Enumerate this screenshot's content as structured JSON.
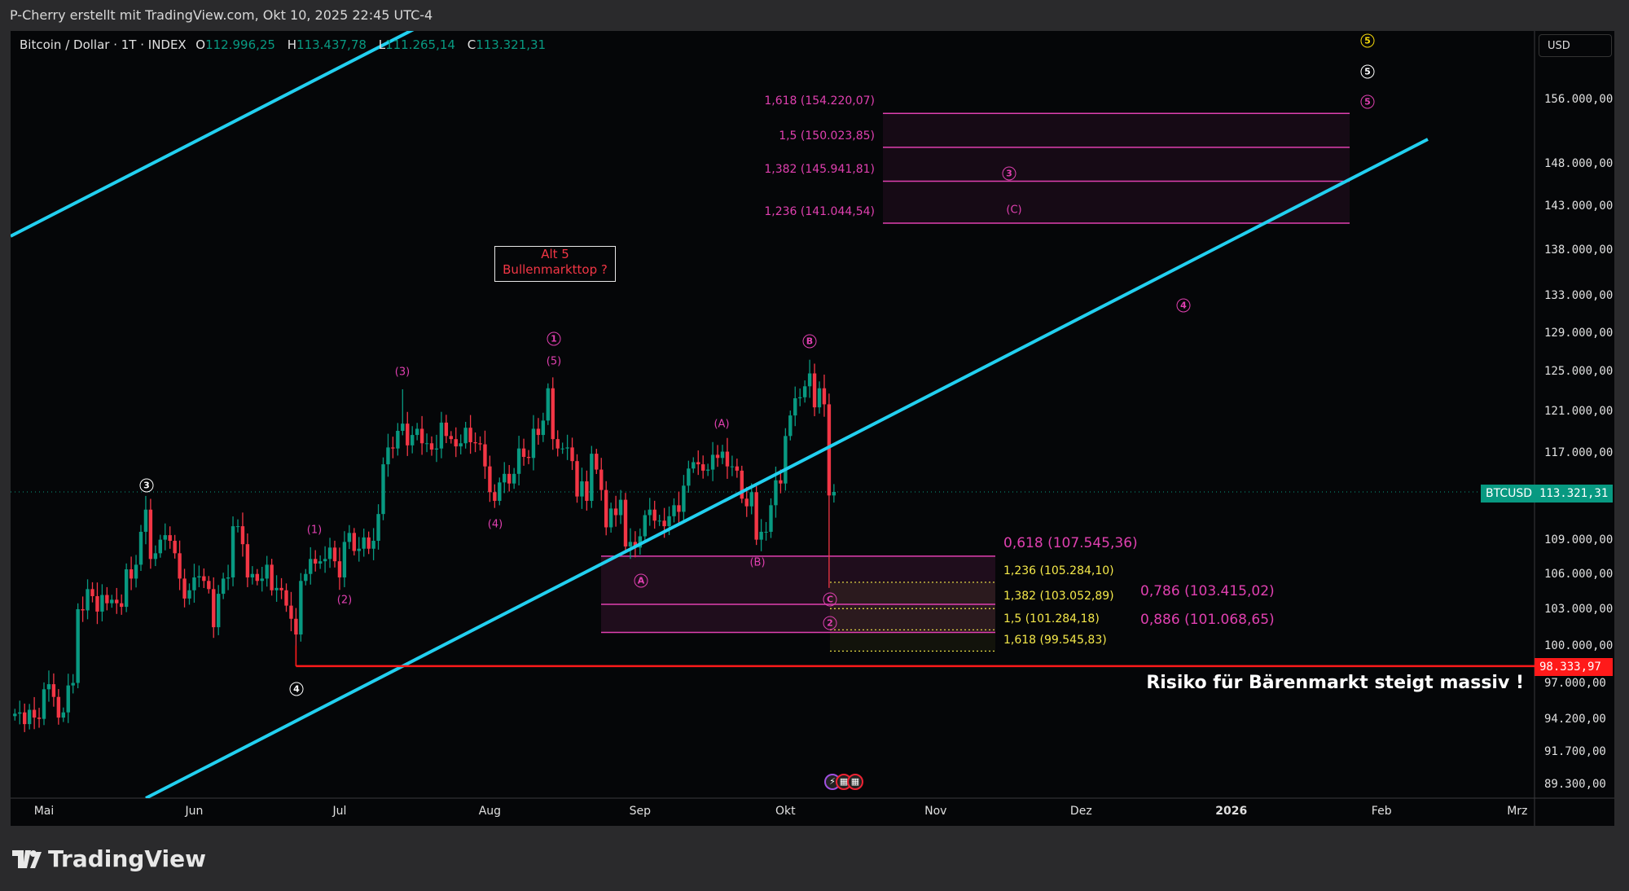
{
  "header": {
    "attribution": "P-Cherry erstellt mit TradingView.com, Okt 10, 2025 22:45 UTC-4"
  },
  "legend": {
    "symbol": "Bitcoin / Dollar · 1T · INDEX",
    "o_label": "O",
    "open": "112.996,25",
    "h_label": "H",
    "high": "113.437,78",
    "l_label": "L",
    "low": "111.265,14",
    "c_label": "C",
    "close": "113.321,31"
  },
  "colors": {
    "up": "#089981",
    "down": "#f23645",
    "trendline": "#22d0f0",
    "fib": "#e040b0",
    "fib_alt": "#f5e94a",
    "support": "#ff1a1a",
    "background": "#050608"
  },
  "price_axis": {
    "currency": "USD",
    "scale": "log",
    "labels": [
      "156.000,00",
      "148.000,00",
      "143.000,00",
      "138.000,00",
      "133.000,00",
      "129.000,00",
      "125.000,00",
      "121.000,00",
      "117.000,00",
      "109.000,00",
      "106.000,00",
      "103.000,00",
      "100.000,00",
      "97.000,00",
      "94.200,00",
      "91.700,00",
      "89.300,00"
    ],
    "values": [
      156000,
      148000,
      143000,
      138000,
      133000,
      129000,
      125000,
      121000,
      117000,
      109000,
      106000,
      103000,
      100000,
      97000,
      94200,
      91700,
      89300
    ],
    "current_symbol": "BTCUSD",
    "current_price": "113.321,31",
    "support_price": "98.333,97"
  },
  "time_axis": {
    "labels": [
      "Mai",
      "Jun",
      "Jul",
      "Aug",
      "Sep",
      "Okt",
      "Nov",
      "Dez",
      "2026",
      "Feb",
      "Mrz"
    ],
    "dates": [
      "2025-05-01",
      "2025-06-01",
      "2025-07-01",
      "2025-08-01",
      "2025-09-01",
      "2025-10-01",
      "2025-11-01",
      "2025-12-01",
      "2026-01-01",
      "2026-02-01",
      "2026-03-01"
    ]
  },
  "chart_data": {
    "type": "candlestick",
    "start_date": "2025-04-25",
    "interval": "1D",
    "closes": [
      94600,
      94700,
      93800,
      94900,
      94300,
      94200,
      96500,
      96900,
      95900,
      94300,
      94700,
      96800,
      97000,
      103000,
      102900,
      104700,
      104100,
      102800,
      104200,
      103500,
      103800,
      103500,
      103200,
      106400,
      105600,
      106800,
      109700,
      111700,
      107300,
      107800,
      109000,
      109400,
      108900,
      107800,
      105600,
      103900,
      104600,
      105700,
      105800,
      105400,
      104700,
      101500,
      104300,
      105600,
      105700,
      110200,
      110200,
      108600,
      105700,
      106000,
      105400,
      105600,
      106800,
      104600,
      104800,
      104600,
      103300,
      102200,
      100900,
      105400,
      106000,
      107300,
      106900,
      107100,
      107300,
      108300,
      107100,
      105700,
      108800,
      109600,
      108000,
      108200,
      109200,
      108200,
      108900,
      111300,
      115900,
      117500,
      117400,
      119100,
      119800,
      117700,
      118700,
      119300,
      117900,
      117900,
      117300,
      117400,
      119900,
      118600,
      118300,
      117600,
      117900,
      119400,
      118000,
      117900,
      117800,
      115700,
      113300,
      112500,
      114200,
      115000,
      114100,
      115000,
      117400,
      116600,
      116500,
      119300,
      118700,
      120100,
      123300,
      118300,
      117400,
      117400,
      117500,
      116200,
      112900,
      114300,
      112500,
      116900,
      115400,
      113500,
      110100,
      111800,
      111200,
      112600,
      108400,
      108800,
      108300,
      109300,
      111200,
      111700,
      110700,
      110700,
      110200,
      111100,
      112100,
      111500,
      113900,
      115500,
      116100,
      115900,
      115300,
      115400,
      116800,
      116500,
      117100,
      115700,
      115700,
      115300,
      112700,
      112000,
      113300,
      109000,
      109700,
      109700,
      112100,
      114400,
      114100,
      118600,
      120600,
      122300,
      122400,
      123500,
      124800,
      121400,
      123300,
      121700,
      112996,
      113321
    ],
    "notable_lows": {
      "2025-06-22": 98334,
      "2025-10-10": 104800
    },
    "notable_highs": {
      "2025-07-14": 123200,
      "2025-08-14": 124400,
      "2025-10-06": 126200
    }
  },
  "fib_upper": [
    {
      "label": "1,618 (154.220,07)",
      "price": 154220.07
    },
    {
      "label": "1,5 (150.023,85)",
      "price": 150023.85
    },
    {
      "label": "1,382 (145.941,81)",
      "price": 145941.81
    },
    {
      "label": "1,236 (141.044,54)",
      "price": 141044.54
    }
  ],
  "fib_lower_pink": [
    {
      "label": "0,618 (107.545,36)",
      "price": 107545.36
    },
    {
      "label": "0,786 (103.415,02)",
      "price": 103415.02
    },
    {
      "label": "0,886 (101.068,65)",
      "price": 101068.65
    }
  ],
  "fib_lower_yellow": [
    {
      "label": "1,236 (105.284,10)",
      "price": 105284.1
    },
    {
      "label": "1,382 (103.052,89)",
      "price": 103052.89
    },
    {
      "label": "1,5 (101.284,18)",
      "price": 101284.18
    },
    {
      "label": "1,618 (99.545,83)",
      "price": 99545.83
    }
  ],
  "wave_labels": {
    "w3_white": "3",
    "w4_white": "4",
    "w5_yellow": "5",
    "w5_white": "5",
    "w5_pink": "5",
    "w3_pink": "3",
    "wC_paren_upper": "(C)",
    "w4_pink": "4",
    "w1_paren": "(1)",
    "w2_paren": "(2)",
    "w3_paren": "(3)",
    "w4_paren": "(4)",
    "w5_paren": "(5)",
    "w1_circle": "1",
    "wA_paren": "(A)",
    "wB_paren": "(B)",
    "wA_circle": "A",
    "wB_circle": "B",
    "wC_circle": "C",
    "w2_circle": "2"
  },
  "annotations": {
    "alt5_line1": "Alt 5",
    "alt5_line2": "Bullenmarkttop ?",
    "risk": "Risiko für Bärenmarkt steigt massiv !"
  },
  "branding": {
    "logo_text": "TradingView"
  }
}
